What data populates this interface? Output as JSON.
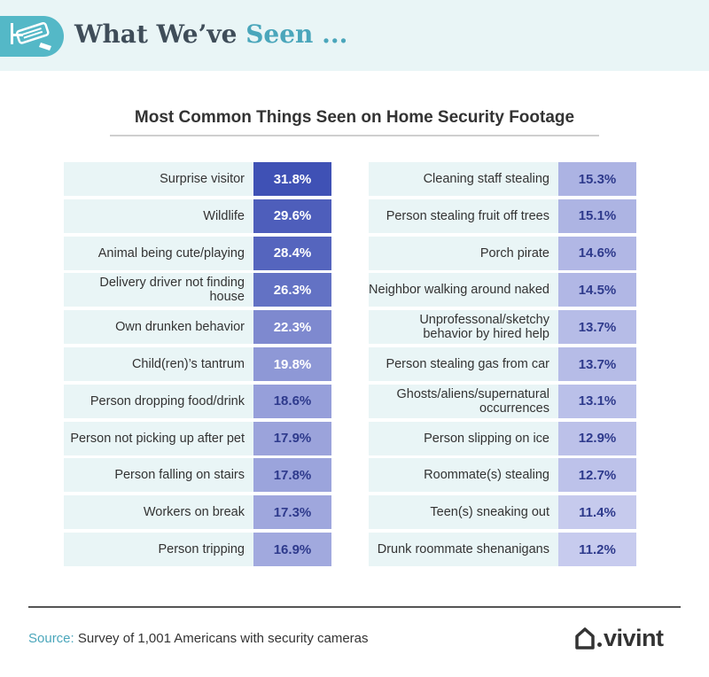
{
  "header": {
    "title_main": "What We’ve ",
    "title_accent": "Seen ..."
  },
  "chart_data": {
    "type": "table",
    "title": "Most Common Things Seen on Home Security Footage",
    "unit": "%",
    "left_column": [
      {
        "label": "Surprise visitor",
        "value": 31.8,
        "display": "31.8%"
      },
      {
        "label": "Wildlife",
        "value": 29.6,
        "display": "29.6%"
      },
      {
        "label": "Animal being cute/playing",
        "value": 28.4,
        "display": "28.4%"
      },
      {
        "label": "Delivery driver not finding house",
        "value": 26.3,
        "display": "26.3%"
      },
      {
        "label": "Own drunken behavior",
        "value": 22.3,
        "display": "22.3%"
      },
      {
        "label": "Child(ren)’s tantrum",
        "value": 19.8,
        "display": "19.8%"
      },
      {
        "label": "Person dropping food/drink",
        "value": 18.6,
        "display": "18.6%"
      },
      {
        "label": "Person not picking up after pet",
        "value": 17.9,
        "display": "17.9%"
      },
      {
        "label": "Person falling on stairs",
        "value": 17.8,
        "display": "17.8%"
      },
      {
        "label": "Workers on break",
        "value": 17.3,
        "display": "17.3%"
      },
      {
        "label": "Person tripping",
        "value": 16.9,
        "display": "16.9%"
      }
    ],
    "right_column": [
      {
        "label": "Cleaning staff stealing",
        "value": 15.3,
        "display": "15.3%"
      },
      {
        "label": "Person stealing fruit off trees",
        "value": 15.1,
        "display": "15.1%"
      },
      {
        "label": "Porch pirate",
        "value": 14.6,
        "display": "14.6%"
      },
      {
        "label": "Neighbor walking around naked",
        "value": 14.5,
        "display": "14.5%"
      },
      {
        "label": "Unprofessonal/sketchy behavior by hired help",
        "value": 13.7,
        "display": "13.7%"
      },
      {
        "label": "Person stealing gas from car",
        "value": 13.7,
        "display": "13.7%"
      },
      {
        "label": "Ghosts/aliens/supernatural occurrences",
        "value": 13.1,
        "display": "13.1%"
      },
      {
        "label": "Person slipping on ice",
        "value": 12.9,
        "display": "12.9%"
      },
      {
        "label": "Roommate(s) stealing",
        "value": 12.7,
        "display": "12.7%"
      },
      {
        "label": "Teen(s) sneaking out",
        "value": 11.4,
        "display": "11.4%"
      },
      {
        "label": "Drunk roommate shenanigans",
        "value": 11.2,
        "display": "11.2%"
      }
    ],
    "color_scale": {
      "min_color": "#c7cbee",
      "max_color": "#3f51b5",
      "min_value": 11.2,
      "max_value": 31.8
    }
  },
  "footer": {
    "source_label": "Source:",
    "source_text": " Survey of 1,001 Americans with security cameras",
    "logo_text": "vivint"
  },
  "colors": {
    "header_bg": "#e9f5f6",
    "accent": "#4aa6bb",
    "label_bg": "#e9f5f6"
  }
}
